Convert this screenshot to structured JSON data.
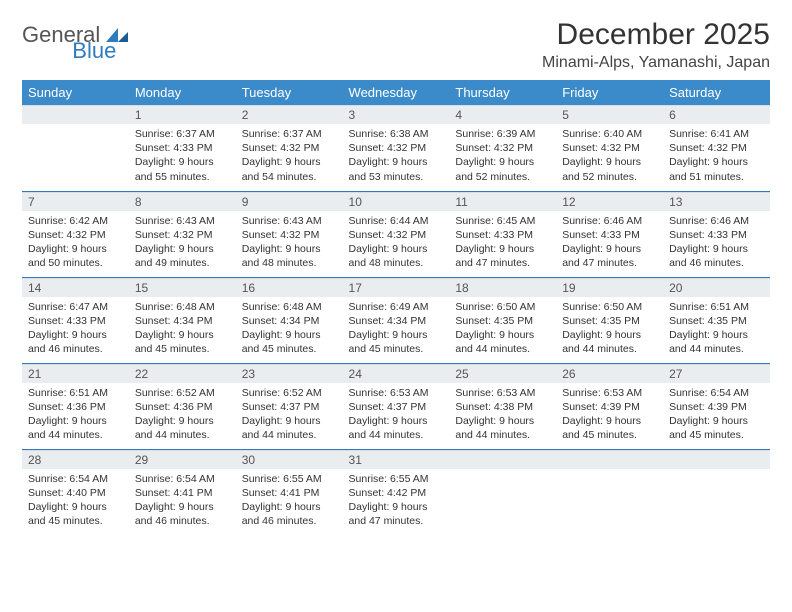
{
  "brand": {
    "part1": "General",
    "part2": "Blue"
  },
  "title": "December 2025",
  "location": "Minami-Alps, Yamanashi, Japan",
  "colors": {
    "header_bg": "#3b8bca",
    "header_text": "#ffffff",
    "daynum_bg": "#e9edf0",
    "rule": "#2f7bbf",
    "text": "#333333",
    "brand_gray": "#555555",
    "brand_blue": "#2f7bbf"
  },
  "day_headers": [
    "Sunday",
    "Monday",
    "Tuesday",
    "Wednesday",
    "Thursday",
    "Friday",
    "Saturday"
  ],
  "weeks": [
    [
      null,
      {
        "n": "1",
        "sr": "6:37 AM",
        "ss": "4:33 PM",
        "dl": "9 hours and 55 minutes."
      },
      {
        "n": "2",
        "sr": "6:37 AM",
        "ss": "4:32 PM",
        "dl": "9 hours and 54 minutes."
      },
      {
        "n": "3",
        "sr": "6:38 AM",
        "ss": "4:32 PM",
        "dl": "9 hours and 53 minutes."
      },
      {
        "n": "4",
        "sr": "6:39 AM",
        "ss": "4:32 PM",
        "dl": "9 hours and 52 minutes."
      },
      {
        "n": "5",
        "sr": "6:40 AM",
        "ss": "4:32 PM",
        "dl": "9 hours and 52 minutes."
      },
      {
        "n": "6",
        "sr": "6:41 AM",
        "ss": "4:32 PM",
        "dl": "9 hours and 51 minutes."
      }
    ],
    [
      {
        "n": "7",
        "sr": "6:42 AM",
        "ss": "4:32 PM",
        "dl": "9 hours and 50 minutes."
      },
      {
        "n": "8",
        "sr": "6:43 AM",
        "ss": "4:32 PM",
        "dl": "9 hours and 49 minutes."
      },
      {
        "n": "9",
        "sr": "6:43 AM",
        "ss": "4:32 PM",
        "dl": "9 hours and 48 minutes."
      },
      {
        "n": "10",
        "sr": "6:44 AM",
        "ss": "4:32 PM",
        "dl": "9 hours and 48 minutes."
      },
      {
        "n": "11",
        "sr": "6:45 AM",
        "ss": "4:33 PM",
        "dl": "9 hours and 47 minutes."
      },
      {
        "n": "12",
        "sr": "6:46 AM",
        "ss": "4:33 PM",
        "dl": "9 hours and 47 minutes."
      },
      {
        "n": "13",
        "sr": "6:46 AM",
        "ss": "4:33 PM",
        "dl": "9 hours and 46 minutes."
      }
    ],
    [
      {
        "n": "14",
        "sr": "6:47 AM",
        "ss": "4:33 PM",
        "dl": "9 hours and 46 minutes."
      },
      {
        "n": "15",
        "sr": "6:48 AM",
        "ss": "4:34 PM",
        "dl": "9 hours and 45 minutes."
      },
      {
        "n": "16",
        "sr": "6:48 AM",
        "ss": "4:34 PM",
        "dl": "9 hours and 45 minutes."
      },
      {
        "n": "17",
        "sr": "6:49 AM",
        "ss": "4:34 PM",
        "dl": "9 hours and 45 minutes."
      },
      {
        "n": "18",
        "sr": "6:50 AM",
        "ss": "4:35 PM",
        "dl": "9 hours and 44 minutes."
      },
      {
        "n": "19",
        "sr": "6:50 AM",
        "ss": "4:35 PM",
        "dl": "9 hours and 44 minutes."
      },
      {
        "n": "20",
        "sr": "6:51 AM",
        "ss": "4:35 PM",
        "dl": "9 hours and 44 minutes."
      }
    ],
    [
      {
        "n": "21",
        "sr": "6:51 AM",
        "ss": "4:36 PM",
        "dl": "9 hours and 44 minutes."
      },
      {
        "n": "22",
        "sr": "6:52 AM",
        "ss": "4:36 PM",
        "dl": "9 hours and 44 minutes."
      },
      {
        "n": "23",
        "sr": "6:52 AM",
        "ss": "4:37 PM",
        "dl": "9 hours and 44 minutes."
      },
      {
        "n": "24",
        "sr": "6:53 AM",
        "ss": "4:37 PM",
        "dl": "9 hours and 44 minutes."
      },
      {
        "n": "25",
        "sr": "6:53 AM",
        "ss": "4:38 PM",
        "dl": "9 hours and 44 minutes."
      },
      {
        "n": "26",
        "sr": "6:53 AM",
        "ss": "4:39 PM",
        "dl": "9 hours and 45 minutes."
      },
      {
        "n": "27",
        "sr": "6:54 AM",
        "ss": "4:39 PM",
        "dl": "9 hours and 45 minutes."
      }
    ],
    [
      {
        "n": "28",
        "sr": "6:54 AM",
        "ss": "4:40 PM",
        "dl": "9 hours and 45 minutes."
      },
      {
        "n": "29",
        "sr": "6:54 AM",
        "ss": "4:41 PM",
        "dl": "9 hours and 46 minutes."
      },
      {
        "n": "30",
        "sr": "6:55 AM",
        "ss": "4:41 PM",
        "dl": "9 hours and 46 minutes."
      },
      {
        "n": "31",
        "sr": "6:55 AM",
        "ss": "4:42 PM",
        "dl": "9 hours and 47 minutes."
      },
      null,
      null,
      null
    ]
  ],
  "labels": {
    "sunrise": "Sunrise:",
    "sunset": "Sunset:",
    "daylight": "Daylight:"
  }
}
